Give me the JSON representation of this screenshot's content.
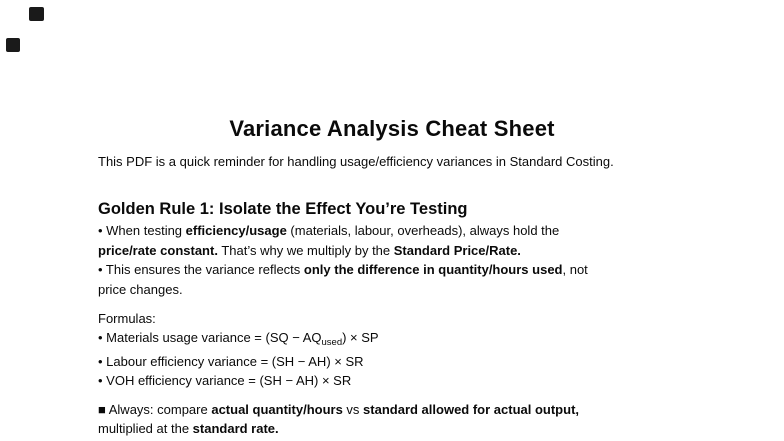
{
  "colors": {
    "background": "#ffffff",
    "text": "#0a0a0a",
    "marker": "#1a1a1a"
  },
  "markers": [
    {
      "icon": "black-square-marker"
    },
    {
      "icon": "black-square-marker"
    }
  ],
  "document": {
    "title": "Variance Analysis Cheat Sheet",
    "intro": "This PDF is a quick reminder for handling usage/efficiency variances in Standard Costing.",
    "section_heading": "Golden Rule 1: Isolate the Effect You’re Testing",
    "rule_paragraph": [
      [
        {
          "t": "• When testing "
        },
        {
          "t": "efficiency/usage",
          "b": true
        },
        {
          "t": " (materials, labour, overheads), always hold the"
        }
      ],
      [
        {
          "t": "price/rate constant.",
          "b": true
        },
        {
          "t": " That’s why we multiply by the "
        },
        {
          "t": "Standard Price/Rate.",
          "b": true
        }
      ],
      [
        {
          "t": "• This ensures the variance reflects "
        },
        {
          "t": "only the difference in quantity/hours used",
          "b": true
        },
        {
          "t": ", not"
        }
      ],
      [
        {
          "t": "price changes."
        }
      ]
    ],
    "formulas": [
      [
        {
          "t": "Formulas:"
        }
      ],
      [
        {
          "t": "• Materials usage variance = (SQ − AQ"
        },
        {
          "t": "used",
          "sub": true
        },
        {
          "t": ") × SP"
        }
      ],
      [
        {
          "t": "• Labour efficiency variance = (SH − AH) × SR"
        }
      ],
      [
        {
          "t": "• VOH efficiency variance = (SH − AH) × SR"
        }
      ]
    ],
    "summary": [
      [
        {
          "t": "■ Always: compare "
        },
        {
          "t": "actual quantity/hours",
          "b": true
        },
        {
          "t": " vs "
        },
        {
          "t": "standard allowed for actual output,",
          "b": true
        }
      ],
      [
        {
          "t": "multiplied at the "
        },
        {
          "t": "standard rate.",
          "b": true
        }
      ]
    ]
  }
}
